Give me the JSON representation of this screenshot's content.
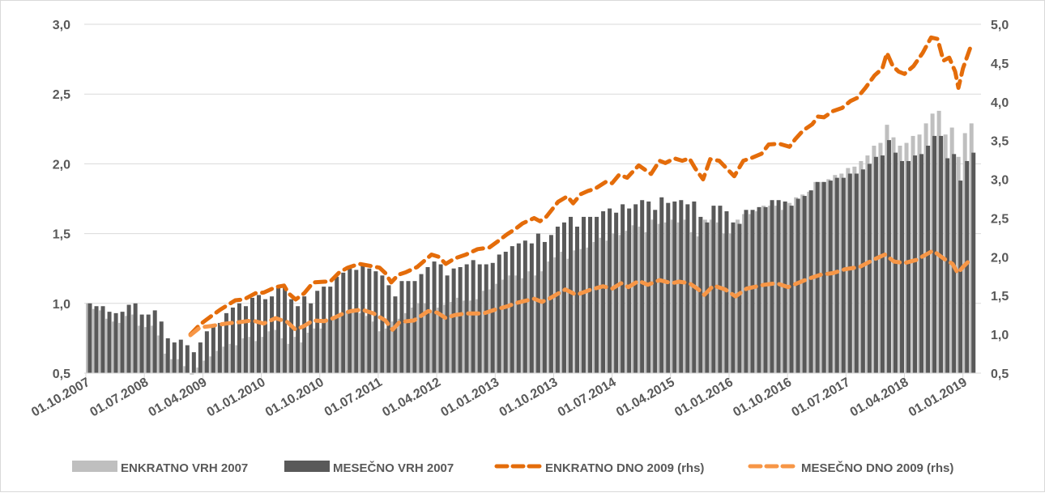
{
  "chart_data": {
    "type": "bar+line",
    "title": "",
    "x_start": "01.10.2007",
    "x_unit": "month index since 01.10.2007",
    "x_tick_labels": [
      "01.10.2007",
      "01.07.2008",
      "01.04.2009",
      "01.01.2010",
      "01.10.2010",
      "01.07.2011",
      "01.04.2012",
      "01.01.2013",
      "01.10.2013",
      "01.07.2014",
      "01.04.2015",
      "01.01.2016",
      "01.10.2016",
      "01.07.2017",
      "01.04.2018",
      "01.01.2019"
    ],
    "x_tick_every_months": 9,
    "y_left": {
      "min": 0.5,
      "max": 3.0,
      "step": 0.5,
      "tick_labels": [
        "0,5",
        "1,0",
        "1,5",
        "2,0",
        "2,5",
        "3,0"
      ]
    },
    "y_right": {
      "min": 0.5,
      "max": 5.0,
      "step": 0.5,
      "tick_labels": [
        "0,5",
        "1,0",
        "1,5",
        "2,0",
        "2,5",
        "3,0",
        "3,5",
        "4,0",
        "4,5",
        "5,0"
      ]
    },
    "grid": true,
    "legend_position": "bottom",
    "series": [
      {
        "name": "ENKRATNO VRH 2007",
        "type": "bar",
        "axis": "left",
        "color": "#BFBFBF",
        "values": [
          1.0,
          0.96,
          0.95,
          0.89,
          0.87,
          0.86,
          0.91,
          0.92,
          0.84,
          0.83,
          0.84,
          0.77,
          0.64,
          0.6,
          0.6,
          0.55,
          0.49,
          0.54,
          0.59,
          0.62,
          0.66,
          0.69,
          0.71,
          0.7,
          0.75,
          0.76,
          0.73,
          0.76,
          0.8,
          0.81,
          0.75,
          0.71,
          0.76,
          0.72,
          0.79,
          0.82,
          0.82,
          0.88,
          0.91,
          0.93,
          0.94,
          0.95,
          0.93,
          0.91,
          0.87,
          0.8,
          0.82,
          0.87,
          0.89,
          0.93,
          0.97,
          1.0,
          1.0,
          0.94,
          0.97,
          0.99,
          1.01,
          1.04,
          1.02,
          1.02,
          1.03,
          1.09,
          1.1,
          1.14,
          1.17,
          1.2,
          1.2,
          1.18,
          1.23,
          1.2,
          1.23,
          1.3,
          1.33,
          1.37,
          1.32,
          1.38,
          1.39,
          1.4,
          1.44,
          1.47,
          1.45,
          1.5,
          1.49,
          1.52,
          1.56,
          1.55,
          1.51,
          1.6,
          1.57,
          1.58,
          1.6,
          1.58,
          1.6,
          1.51,
          1.48,
          1.6,
          1.6,
          1.58,
          1.5,
          1.5,
          1.6,
          1.64,
          1.64,
          1.66,
          1.7,
          1.7,
          1.7,
          1.67,
          1.72,
          1.76,
          1.78,
          1.8,
          1.87,
          1.87,
          1.89,
          1.92,
          1.93,
          1.97,
          1.98,
          2.02,
          2.06,
          2.13,
          2.15,
          2.28,
          2.19,
          2.13,
          2.15,
          2.2,
          2.21,
          2.29,
          2.36,
          2.38,
          2.21,
          2.26,
          2.05,
          2.22,
          2.29
        ]
      },
      {
        "name": "MESEČNO VRH 2007",
        "type": "bar",
        "axis": "left",
        "color": "#595959",
        "values": [
          1.0,
          0.98,
          0.98,
          0.94,
          0.93,
          0.94,
          0.99,
          1.0,
          0.92,
          0.92,
          0.95,
          0.87,
          0.75,
          0.72,
          0.74,
          0.7,
          0.65,
          0.72,
          0.8,
          0.83,
          0.86,
          0.93,
          0.97,
          1.0,
          0.98,
          1.04,
          1.06,
          1.03,
          1.05,
          1.11,
          1.12,
          1.03,
          0.98,
          1.05,
          1.0,
          1.09,
          1.12,
          1.12,
          1.19,
          1.22,
          1.25,
          1.24,
          1.27,
          1.25,
          1.23,
          1.2,
          1.13,
          1.05,
          1.16,
          1.16,
          1.16,
          1.21,
          1.26,
          1.3,
          1.28,
          1.2,
          1.25,
          1.26,
          1.28,
          1.31,
          1.28,
          1.28,
          1.29,
          1.35,
          1.37,
          1.41,
          1.43,
          1.45,
          1.43,
          1.5,
          1.44,
          1.49,
          1.55,
          1.58,
          1.62,
          1.55,
          1.62,
          1.62,
          1.62,
          1.66,
          1.68,
          1.65,
          1.71,
          1.68,
          1.71,
          1.74,
          1.73,
          1.67,
          1.76,
          1.72,
          1.73,
          1.74,
          1.71,
          1.73,
          1.62,
          1.58,
          1.7,
          1.7,
          1.66,
          1.58,
          1.57,
          1.67,
          1.67,
          1.69,
          1.69,
          1.74,
          1.74,
          1.73,
          1.7,
          1.75,
          1.77,
          1.81,
          1.87,
          1.87,
          1.88,
          1.9,
          1.9,
          1.93,
          1.93,
          1.96,
          2.0,
          2.05,
          2.06,
          2.17,
          2.08,
          2.02,
          2.02,
          2.06,
          2.07,
          2.13,
          2.2,
          2.2,
          2.04,
          2.07,
          1.88,
          2.02,
          2.08
        ]
      },
      {
        "name": "ENKRATNO DNO 2009 (rhs)",
        "type": "line",
        "dashed": true,
        "axis": "right",
        "color": "#E46C0A",
        "points": [
          [
            15.6,
            1.0
          ],
          [
            17.1,
            1.13
          ],
          [
            18.7,
            1.23
          ],
          [
            20.2,
            1.32
          ],
          [
            22.5,
            1.44
          ],
          [
            23.8,
            1.45
          ],
          [
            25.6,
            1.53
          ],
          [
            26.9,
            1.54
          ],
          [
            28.7,
            1.61
          ],
          [
            30.0,
            1.63
          ],
          [
            30.7,
            1.53
          ],
          [
            31.8,
            1.45
          ],
          [
            33.1,
            1.53
          ],
          [
            34.5,
            1.67
          ],
          [
            36.2,
            1.68
          ],
          [
            37.1,
            1.68
          ],
          [
            38.5,
            1.8
          ],
          [
            39.8,
            1.86
          ],
          [
            41.6,
            1.91
          ],
          [
            42.9,
            1.89
          ],
          [
            44.7,
            1.86
          ],
          [
            45.6,
            1.79
          ],
          [
            46.5,
            1.67
          ],
          [
            47.6,
            1.77
          ],
          [
            48.7,
            1.8
          ],
          [
            50.5,
            1.87
          ],
          [
            52.7,
            2.03
          ],
          [
            53.8,
            2.0
          ],
          [
            54.9,
            1.91
          ],
          [
            56.3,
            1.98
          ],
          [
            58.0,
            2.03
          ],
          [
            59.8,
            2.1
          ],
          [
            61.6,
            2.12
          ],
          [
            62.9,
            2.2
          ],
          [
            64.3,
            2.29
          ],
          [
            65.6,
            2.36
          ],
          [
            66.7,
            2.43
          ],
          [
            68.5,
            2.5
          ],
          [
            69.4,
            2.46
          ],
          [
            70.4,
            2.52
          ],
          [
            72.2,
            2.71
          ],
          [
            73.6,
            2.78
          ],
          [
            74.5,
            2.69
          ],
          [
            75.7,
            2.81
          ],
          [
            76.8,
            2.85
          ],
          [
            77.9,
            2.88
          ],
          [
            79.6,
            2.97
          ],
          [
            80.5,
            2.95
          ],
          [
            81.6,
            3.06
          ],
          [
            82.8,
            3.02
          ],
          [
            84.6,
            3.18
          ],
          [
            86.5,
            3.07
          ],
          [
            87.8,
            3.24
          ],
          [
            88.7,
            3.21
          ],
          [
            90.1,
            3.27
          ],
          [
            91.3,
            3.24
          ],
          [
            92.4,
            3.27
          ],
          [
            93.3,
            3.14
          ],
          [
            94.5,
            3.0
          ],
          [
            95.6,
            3.26
          ],
          [
            97.0,
            3.24
          ],
          [
            97.9,
            3.16
          ],
          [
            99.3,
            3.04
          ],
          [
            100.7,
            3.24
          ],
          [
            102.1,
            3.28
          ],
          [
            103.5,
            3.33
          ],
          [
            104.6,
            3.45
          ],
          [
            106.2,
            3.46
          ],
          [
            107.8,
            3.42
          ],
          [
            108.7,
            3.52
          ],
          [
            109.9,
            3.63
          ],
          [
            111.3,
            3.71
          ],
          [
            112.2,
            3.81
          ],
          [
            113.1,
            3.8
          ],
          [
            114.5,
            3.88
          ],
          [
            115.9,
            3.92
          ],
          [
            117.2,
            4.01
          ],
          [
            118.2,
            4.05
          ],
          [
            119.5,
            4.18
          ],
          [
            120.9,
            4.34
          ],
          [
            122.1,
            4.43
          ],
          [
            122.8,
            4.63
          ],
          [
            123.7,
            4.46
          ],
          [
            124.6,
            4.39
          ],
          [
            125.5,
            4.36
          ],
          [
            126.9,
            4.46
          ],
          [
            128.3,
            4.63
          ],
          [
            129.6,
            4.83
          ],
          [
            130.6,
            4.81
          ],
          [
            131.5,
            4.53
          ],
          [
            132.4,
            4.57
          ],
          [
            133.3,
            4.39
          ],
          [
            133.8,
            4.18
          ],
          [
            134.5,
            4.43
          ],
          [
            135.6,
            4.69
          ]
        ]
      },
      {
        "name": "MESEČNO DNO 2009 (rhs)",
        "type": "line",
        "dashed": true,
        "axis": "right",
        "color": "#F79646",
        "points": [
          [
            15.6,
            0.99
          ],
          [
            17.1,
            1.09
          ],
          [
            18.9,
            1.11
          ],
          [
            21.1,
            1.14
          ],
          [
            23.3,
            1.16
          ],
          [
            25.1,
            1.18
          ],
          [
            26.9,
            1.14
          ],
          [
            28.7,
            1.21
          ],
          [
            30.5,
            1.16
          ],
          [
            31.8,
            1.06
          ],
          [
            33.1,
            1.11
          ],
          [
            34.5,
            1.18
          ],
          [
            36.2,
            1.17
          ],
          [
            37.6,
            1.21
          ],
          [
            39.4,
            1.28
          ],
          [
            40.3,
            1.3
          ],
          [
            42.0,
            1.32
          ],
          [
            43.8,
            1.27
          ],
          [
            45.6,
            1.18
          ],
          [
            46.7,
            1.06
          ],
          [
            47.8,
            1.16
          ],
          [
            50.0,
            1.18
          ],
          [
            52.2,
            1.3
          ],
          [
            53.6,
            1.28
          ],
          [
            54.9,
            1.21
          ],
          [
            56.3,
            1.25
          ],
          [
            58.0,
            1.27
          ],
          [
            60.7,
            1.27
          ],
          [
            62.5,
            1.32
          ],
          [
            64.3,
            1.36
          ],
          [
            66.0,
            1.41
          ],
          [
            68.5,
            1.46
          ],
          [
            69.7,
            1.42
          ],
          [
            70.8,
            1.46
          ],
          [
            73.3,
            1.58
          ],
          [
            75.0,
            1.51
          ],
          [
            77.3,
            1.58
          ],
          [
            79.1,
            1.62
          ],
          [
            80.5,
            1.59
          ],
          [
            81.9,
            1.66
          ],
          [
            83.0,
            1.61
          ],
          [
            84.6,
            1.69
          ],
          [
            86.0,
            1.64
          ],
          [
            87.8,
            1.7
          ],
          [
            89.7,
            1.66
          ],
          [
            90.8,
            1.68
          ],
          [
            92.4,
            1.66
          ],
          [
            93.8,
            1.58
          ],
          [
            94.7,
            1.51
          ],
          [
            96.1,
            1.63
          ],
          [
            97.9,
            1.58
          ],
          [
            99.5,
            1.49
          ],
          [
            101.2,
            1.59
          ],
          [
            103.9,
            1.64
          ],
          [
            105.8,
            1.66
          ],
          [
            107.6,
            1.61
          ],
          [
            109.0,
            1.66
          ],
          [
            110.8,
            1.72
          ],
          [
            112.6,
            1.77
          ],
          [
            114.5,
            1.79
          ],
          [
            116.3,
            1.84
          ],
          [
            118.6,
            1.87
          ],
          [
            120.9,
            1.97
          ],
          [
            122.5,
            2.03
          ],
          [
            123.9,
            1.94
          ],
          [
            125.5,
            1.92
          ],
          [
            127.3,
            1.96
          ],
          [
            129.9,
            2.08
          ],
          [
            131.5,
            1.98
          ],
          [
            132.9,
            1.91
          ],
          [
            133.7,
            1.79
          ],
          [
            134.5,
            1.87
          ],
          [
            135.6,
            1.96
          ]
        ]
      }
    ]
  }
}
